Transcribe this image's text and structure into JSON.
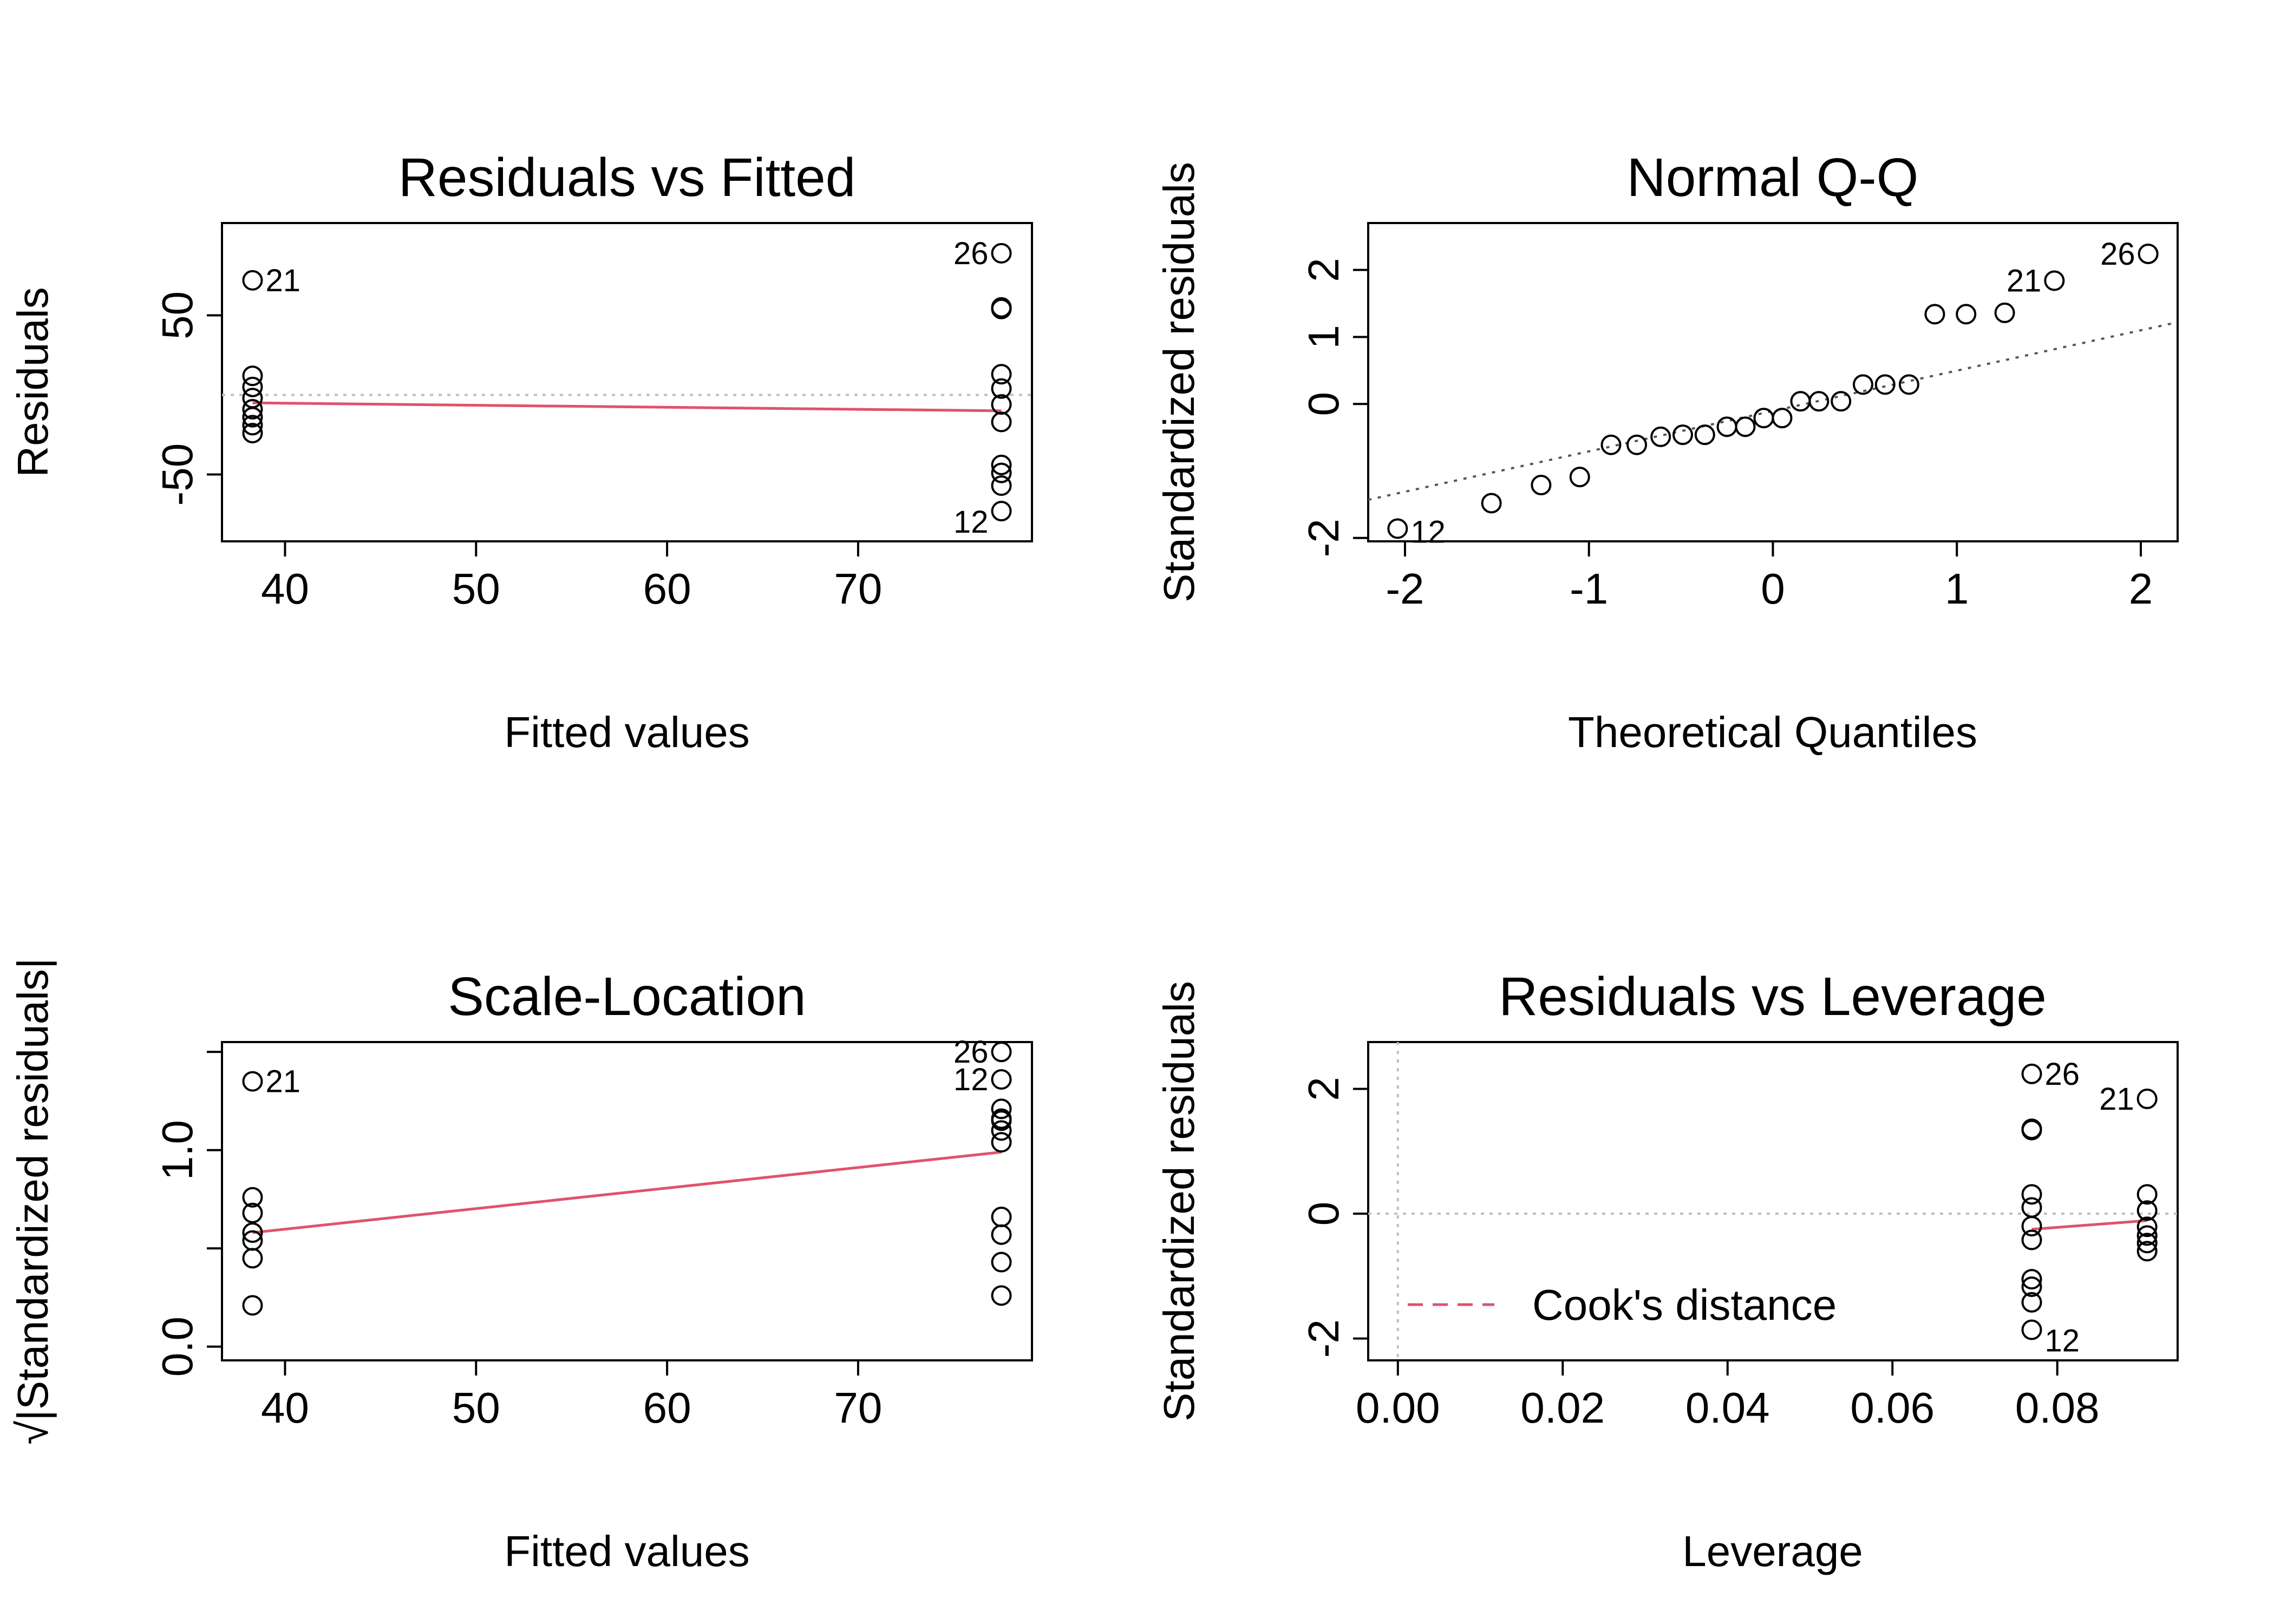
{
  "colors": {
    "smooth": "#DF536B",
    "ref": "#555555",
    "grid": "#BEBEBE",
    "point": "#000000"
  },
  "chart_data": [
    {
      "type": "scatter",
      "title": "Residuals vs Fitted",
      "xlabel": "Fitted values",
      "ylabel": "Residuals",
      "xlim": [
        36.7,
        79.1
      ],
      "ylim": [
        -92,
        108
      ],
      "xticks": [
        40,
        50,
        60,
        70
      ],
      "xtick_labels": [
        "40",
        "50",
        "60",
        "70"
      ],
      "yticks": [
        -50,
        50
      ],
      "ytick_labels": [
        "-50",
        "50"
      ],
      "hline": 0,
      "points": [
        {
          "x": 38.3,
          "y": 72,
          "label": "21"
        },
        {
          "x": 38.3,
          "y": 12
        },
        {
          "x": 38.3,
          "y": 5
        },
        {
          "x": 38.3,
          "y": -2
        },
        {
          "x": 38.3,
          "y": -9
        },
        {
          "x": 38.3,
          "y": -14
        },
        {
          "x": 38.3,
          "y": -19
        },
        {
          "x": 38.3,
          "y": -24
        },
        {
          "x": 77.5,
          "y": 89,
          "label": "26",
          "label_side": "left"
        },
        {
          "x": 77.5,
          "y": 55
        },
        {
          "x": 77.5,
          "y": 54
        },
        {
          "x": 77.5,
          "y": 13
        },
        {
          "x": 77.5,
          "y": 4
        },
        {
          "x": 77.5,
          "y": -6
        },
        {
          "x": 77.5,
          "y": -17
        },
        {
          "x": 77.5,
          "y": -44
        },
        {
          "x": 77.5,
          "y": -49
        },
        {
          "x": 77.5,
          "y": -57
        },
        {
          "x": 77.5,
          "y": -73,
          "label": "12",
          "label_side": "left",
          "label_dy": 1
        }
      ],
      "smooth": [
        [
          38.3,
          -5
        ],
        [
          77.5,
          -10
        ]
      ]
    },
    {
      "type": "scatter",
      "title": "Normal Q-Q",
      "xlabel": "Theoretical Quantiles",
      "ylabel": "Standardized residuals",
      "xlim": [
        -2.2,
        2.2
      ],
      "ylim": [
        -2.05,
        2.7
      ],
      "xticks": [
        -2,
        -1,
        0,
        1,
        2
      ],
      "xtick_labels": [
        "-2",
        "-1",
        "0",
        "1",
        "2"
      ],
      "yticks": [
        -2,
        0,
        1,
        2
      ],
      "ytick_labels": [
        "-2",
        "0",
        "1",
        "2"
      ],
      "refline": [
        [
          -2.2,
          -1.43
        ],
        [
          2.2,
          1.22
        ]
      ],
      "points": [
        {
          "x": -2.04,
          "y": -1.86,
          "label": "12",
          "label_dy": 0.3
        },
        {
          "x": -1.53,
          "y": -1.48
        },
        {
          "x": -1.26,
          "y": -1.21
        },
        {
          "x": -1.05,
          "y": -1.09
        },
        {
          "x": -0.88,
          "y": -0.61
        },
        {
          "x": -0.74,
          "y": -0.61
        },
        {
          "x": -0.61,
          "y": -0.49
        },
        {
          "x": -0.49,
          "y": -0.46
        },
        {
          "x": -0.37,
          "y": -0.46
        },
        {
          "x": -0.25,
          "y": -0.34
        },
        {
          "x": -0.15,
          "y": -0.34
        },
        {
          "x": -0.05,
          "y": -0.21
        },
        {
          "x": 0.05,
          "y": -0.21
        },
        {
          "x": 0.15,
          "y": 0.04
        },
        {
          "x": 0.25,
          "y": 0.04
        },
        {
          "x": 0.37,
          "y": 0.04
        },
        {
          "x": 0.49,
          "y": 0.29
        },
        {
          "x": 0.61,
          "y": 0.29
        },
        {
          "x": 0.74,
          "y": 0.29
        },
        {
          "x": 0.88,
          "y": 1.34
        },
        {
          "x": 1.05,
          "y": 1.34
        },
        {
          "x": 1.26,
          "y": 1.36
        },
        {
          "x": 1.53,
          "y": 1.84,
          "label": "21",
          "label_side": "left"
        },
        {
          "x": 2.04,
          "y": 2.24,
          "label": "26",
          "label_side": "left"
        }
      ]
    },
    {
      "type": "scatter",
      "title": "Scale-Location",
      "xlabel": "Fitted values",
      "ylabel": "√|Standardized residuals|",
      "xlim": [
        36.7,
        79.1
      ],
      "ylim": [
        -0.07,
        1.55
      ],
      "xticks": [
        40,
        50,
        60,
        70
      ],
      "xtick_labels": [
        "40",
        "50",
        "60",
        "70"
      ],
      "yticks": [
        0.0,
        0.5,
        1.0,
        1.5
      ],
      "ytick_labels": [
        "0.0",
        "",
        "1.0",
        ""
      ],
      "points": [
        {
          "x": 38.3,
          "y": 1.35,
          "label": "21"
        },
        {
          "x": 38.3,
          "y": 0.76
        },
        {
          "x": 38.3,
          "y": 0.68
        },
        {
          "x": 38.3,
          "y": 0.58
        },
        {
          "x": 38.3,
          "y": 0.54
        },
        {
          "x": 38.3,
          "y": 0.45
        },
        {
          "x": 38.3,
          "y": 0.21
        },
        {
          "x": 77.5,
          "y": 1.5,
          "label": "26",
          "label_side": "left"
        },
        {
          "x": 77.5,
          "y": 1.36,
          "label": "12",
          "label_side": "left"
        },
        {
          "x": 77.5,
          "y": 1.21
        },
        {
          "x": 77.5,
          "y": 1.16
        },
        {
          "x": 77.5,
          "y": 1.15
        },
        {
          "x": 77.5,
          "y": 1.1
        },
        {
          "x": 77.5,
          "y": 1.04
        },
        {
          "x": 77.5,
          "y": 0.66
        },
        {
          "x": 77.5,
          "y": 0.57
        },
        {
          "x": 77.5,
          "y": 0.43
        },
        {
          "x": 77.5,
          "y": 0.26
        }
      ],
      "smooth": [
        [
          38.3,
          0.58
        ],
        [
          77.5,
          0.99
        ]
      ]
    },
    {
      "type": "scatter",
      "title": "Residuals vs Leverage",
      "xlabel": "Leverage",
      "ylabel": "Standardized residuals",
      "xlim": [
        -0.0036,
        0.0946
      ],
      "ylim": [
        -2.35,
        2.75
      ],
      "xticks": [
        0.0,
        0.02,
        0.04,
        0.06,
        0.08
      ],
      "xtick_labels": [
        "0.00",
        "0.02",
        "0.04",
        "0.06",
        "0.08"
      ],
      "yticks": [
        -2,
        0,
        2
      ],
      "ytick_labels": [
        "-2",
        "0",
        "2"
      ],
      "hline": 0,
      "vline": 0,
      "points": [
        {
          "x": 0.0769,
          "y": 2.24,
          "label": "26"
        },
        {
          "x": 0.0769,
          "y": 1.36
        },
        {
          "x": 0.0769,
          "y": 1.34
        },
        {
          "x": 0.0769,
          "y": 0.31
        },
        {
          "x": 0.0769,
          "y": 0.1
        },
        {
          "x": 0.0769,
          "y": -0.2
        },
        {
          "x": 0.0769,
          "y": -0.42
        },
        {
          "x": 0.0769,
          "y": -1.05
        },
        {
          "x": 0.0769,
          "y": -1.17
        },
        {
          "x": 0.0769,
          "y": -1.42
        },
        {
          "x": 0.0769,
          "y": -1.86,
          "label": "12",
          "label_dy": 1
        },
        {
          "x": 0.0909,
          "y": 1.84,
          "label": "21",
          "label_side": "left"
        },
        {
          "x": 0.0909,
          "y": 0.31
        },
        {
          "x": 0.0909,
          "y": 0.05
        },
        {
          "x": 0.0909,
          "y": -0.21
        },
        {
          "x": 0.0909,
          "y": -0.35
        },
        {
          "x": 0.0909,
          "y": -0.47
        },
        {
          "x": 0.0909,
          "y": -0.6
        }
      ],
      "smooth": [
        [
          0.0769,
          -0.25
        ],
        [
          0.0909,
          -0.11
        ]
      ],
      "legend": {
        "label": "Cook's distance",
        "position": "bottom-left"
      }
    }
  ]
}
